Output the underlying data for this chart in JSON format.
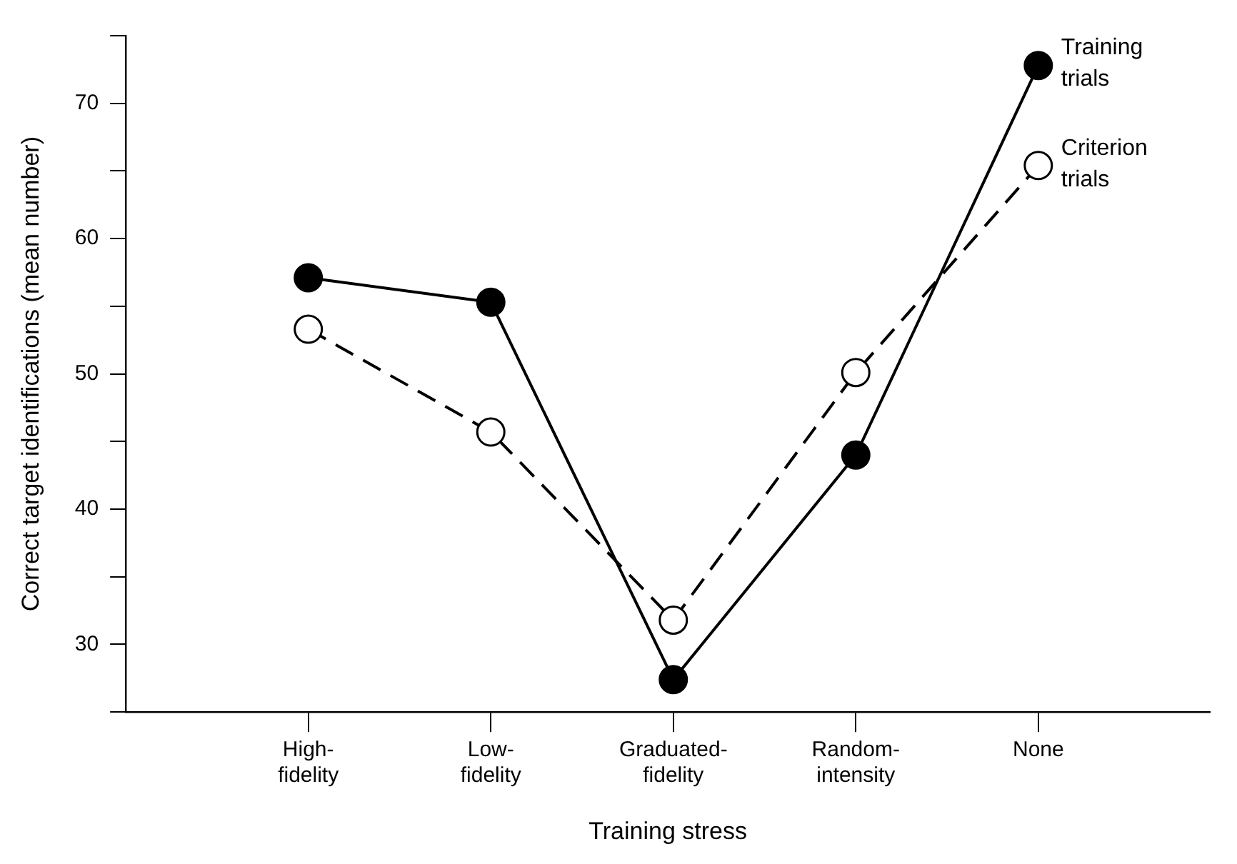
{
  "chart_data": {
    "type": "line",
    "xlabel": "Training stress",
    "ylabel": "Correct target identifications (mean number)",
    "categories": [
      "High-\nfidelity",
      "Low-\nfidelity",
      "Graduated-\nfidelity",
      "Random-\nintensity",
      "None"
    ],
    "series": [
      {
        "name": "Training\ntrials",
        "color": "#000000",
        "line_style": "solid",
        "values": [
          57.1,
          55.3,
          27.4,
          44.0,
          72.8
        ]
      },
      {
        "name": "Criterion\ntrials",
        "color": "#000000",
        "line_style": "dashed",
        "values": [
          53.3,
          45.7,
          31.8,
          50.1,
          65.4
        ]
      }
    ],
    "ylim": [
      25,
      75
    ],
    "yticks": [
      {
        "value": 25,
        "label": null
      },
      30,
      {
        "value": 35,
        "label": null
      },
      40,
      {
        "value": 45,
        "label": null
      },
      50,
      {
        "value": 55,
        "label": null
      },
      60,
      {
        "value": 65,
        "label": null
      },
      70,
      {
        "value": 75,
        "label": null
      }
    ],
    "marker": "circle",
    "grid": false,
    "legend": false
  }
}
